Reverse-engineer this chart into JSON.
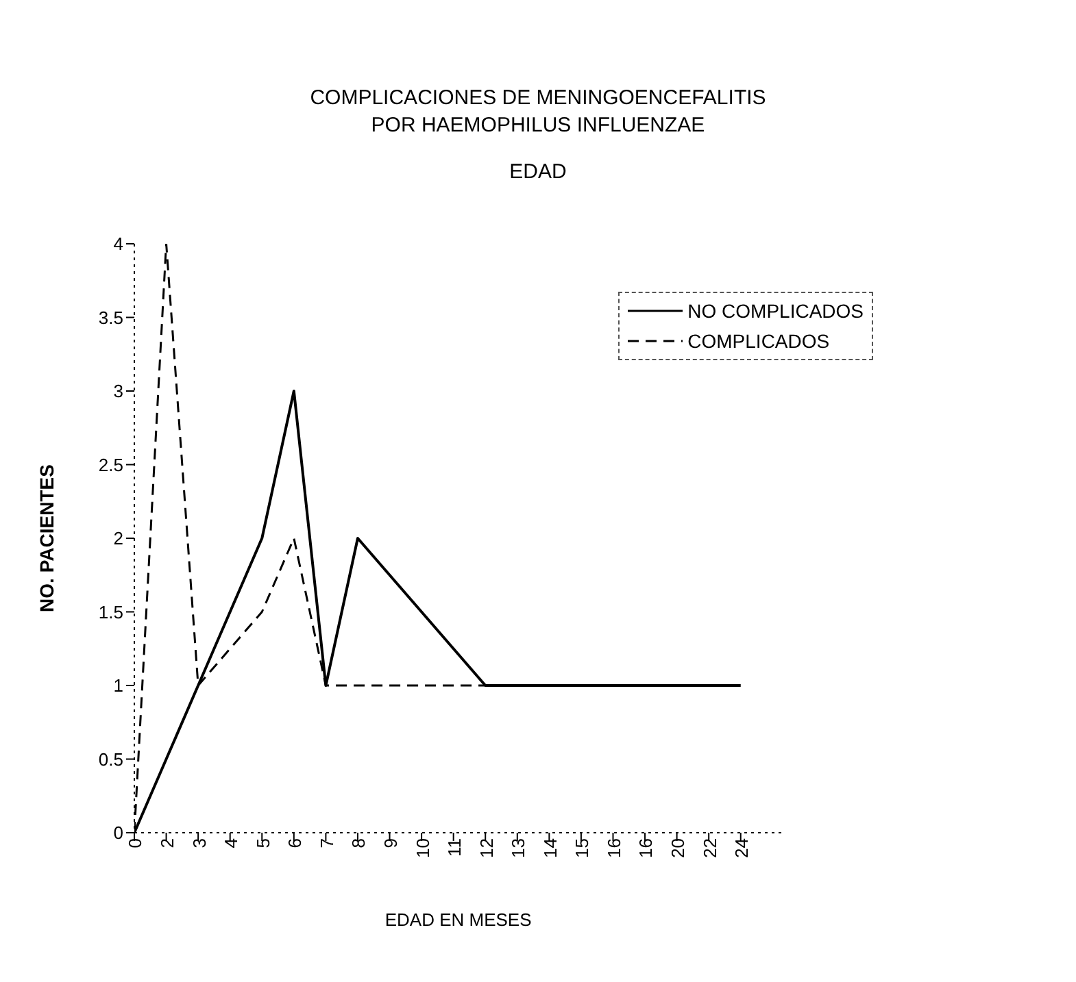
{
  "chart_data": {
    "type": "line",
    "title": "COMPLICACIONES DE MENINGOENCEFALITIS POR HAEMOPHILUS INFLUENZAE",
    "subtitle": "EDAD",
    "xlabel": "EDAD EN MESES",
    "ylabel": "NO. PACIENTES",
    "categories": [
      "0",
      "2",
      "3",
      "4",
      "5",
      "6",
      "7",
      "8",
      "9",
      "10",
      "11",
      "12",
      "13",
      "14",
      "15",
      "16",
      "16",
      "20",
      "22",
      "24"
    ],
    "series": [
      {
        "name": "NO COMPLICADOS",
        "color": "#000000",
        "line_style": "solid",
        "values": [
          0,
          0.5,
          1,
          1.5,
          2,
          3,
          1,
          2,
          1.75,
          1.5,
          1.25,
          1,
          1,
          1,
          1,
          1,
          1,
          1,
          1,
          1
        ]
      },
      {
        "name": "COMPLICADOS",
        "color": "#000000",
        "line_style": "dashed",
        "values": [
          0,
          4,
          1,
          1.25,
          1.5,
          2,
          1,
          1,
          1,
          1,
          1,
          1,
          1,
          1,
          1,
          1,
          1,
          1,
          1,
          1
        ]
      }
    ],
    "ylim": [
      0,
      4
    ],
    "yticks": [
      0,
      0.5,
      1,
      1.5,
      2,
      2.5,
      3,
      3.5,
      4
    ],
    "grid": false,
    "legend": "top right",
    "marker": "none"
  }
}
